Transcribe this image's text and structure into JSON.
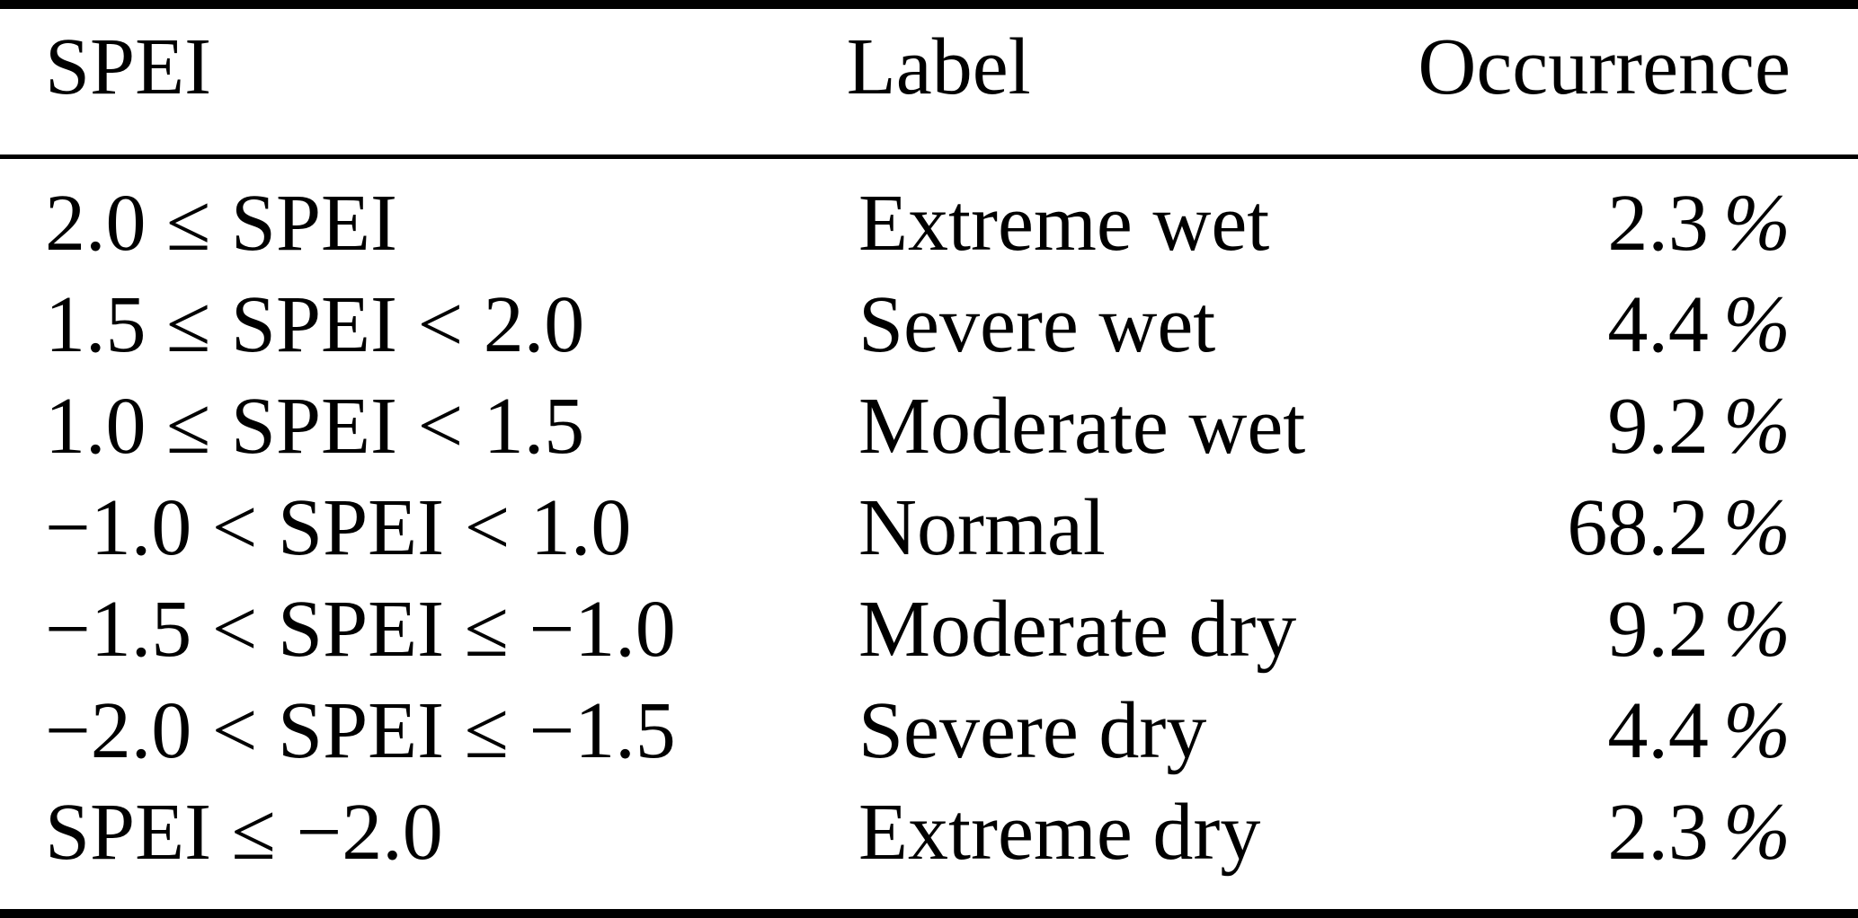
{
  "table": {
    "columns": {
      "spei": "SPEI",
      "label": "Label",
      "occurrence": "Occurrence"
    },
    "rows": [
      {
        "spei": "2.0 ≤ SPEI",
        "label": "Extreme wet",
        "occ_value": "2.3",
        "occ_unit": "%"
      },
      {
        "spei": "1.5 ≤ SPEI < 2.0",
        "label": "Severe wet",
        "occ_value": "4.4",
        "occ_unit": "%"
      },
      {
        "spei": "1.0 ≤ SPEI < 1.5",
        "label": "Moderate wet",
        "occ_value": "9.2",
        "occ_unit": "%"
      },
      {
        "spei": "−1.0 < SPEI < 1.0",
        "label": "Normal",
        "occ_value": "68.2",
        "occ_unit": "%"
      },
      {
        "spei": "−1.5 < SPEI ≤ −1.0",
        "label": "Moderate dry",
        "occ_value": "9.2",
        "occ_unit": "%"
      },
      {
        "spei": "−2.0 < SPEI ≤ −1.5",
        "label": "Severe dry",
        "occ_value": "4.4",
        "occ_unit": "%"
      },
      {
        "spei": "SPEI ≤ −2.0",
        "label": "Extreme dry",
        "occ_value": "2.3",
        "occ_unit": "%"
      }
    ],
    "colors": {
      "text": "#000000",
      "background": "#ffffff",
      "rule": "#000000"
    }
  }
}
